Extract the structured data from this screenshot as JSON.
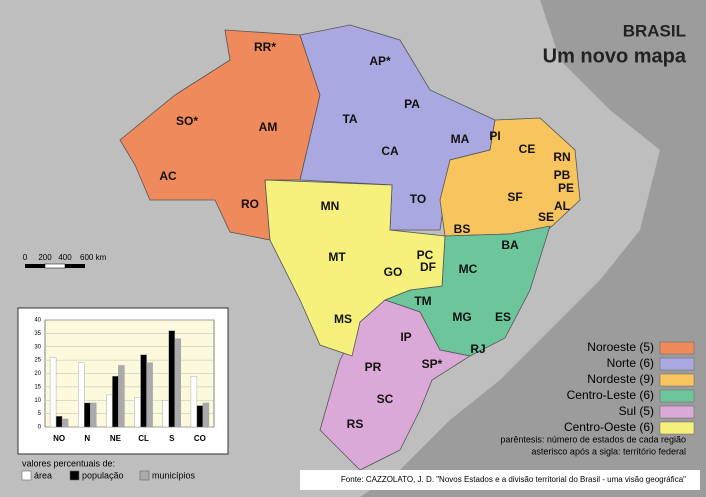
{
  "title": "BRASIL",
  "subtitle": "Um novo mapa",
  "states": [
    "RR*",
    "AP*",
    "SO*",
    "AM",
    "TA",
    "PA",
    "MA",
    "CA",
    "AC",
    "PI",
    "CE",
    "RN",
    "PB",
    "PE",
    "AL",
    "SE",
    "SF",
    "RO",
    "MN",
    "TO",
    "BS",
    "BA",
    "PC",
    "DF",
    "MT",
    "GO",
    "MC",
    "TM",
    "MG",
    "ES",
    "MS",
    "IP",
    "RJ",
    "PR",
    "SP*",
    "SC",
    "RS"
  ],
  "legend": [
    {
      "label": "Noroeste (5)",
      "color": "#ef8a5c"
    },
    {
      "label": "Norte (6)",
      "color": "#aaa8e0"
    },
    {
      "label": "Nordeste (9)",
      "color": "#f8c45e"
    },
    {
      "label": "Centro-Leste (6)",
      "color": "#6dc69b"
    },
    {
      "label": "Sul (5)",
      "color": "#dba9d7"
    },
    {
      "label": "Centro-Oeste (6)",
      "color": "#f6f07c"
    }
  ],
  "notes": [
    "parêntesis: número de estados de cada região",
    "asterisco após a sigla: território federal"
  ],
  "source": "Fonte: CAZZOLATO, J. D. \"Novos Estados e a divisão territorial do Brasil - uma visão geográfica\"",
  "scale": [
    "0",
    "200",
    "400",
    "600 km"
  ],
  "chart_data": {
    "type": "bar",
    "title": "valores percentuais de:",
    "categories": [
      "NO",
      "N",
      "NE",
      "CL",
      "S",
      "CO"
    ],
    "series": [
      {
        "name": "área",
        "color": "#ffffff",
        "values": [
          26,
          24,
          12,
          11,
          10,
          19
        ]
      },
      {
        "name": "população",
        "color": "#000000",
        "values": [
          4,
          9,
          19,
          27,
          36,
          8
        ]
      },
      {
        "name": "municípios",
        "color": "#aaaaaa",
        "values": [
          3,
          9,
          23,
          24,
          33,
          9
        ]
      }
    ],
    "ylim": [
      0,
      40
    ],
    "yticks": [
      0,
      5,
      10,
      15,
      20,
      25,
      30,
      35,
      40
    ],
    "grid": true
  }
}
